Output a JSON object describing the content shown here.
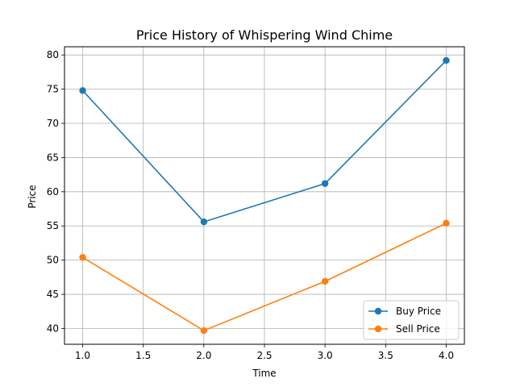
{
  "chart_data": {
    "type": "line",
    "title": "Price History of Whispering Wind Chime",
    "xlabel": "Time",
    "ylabel": "Price",
    "xlim": [
      0.85,
      4.15
    ],
    "ylim": [
      37.7,
      81.2
    ],
    "xticks": [
      1.0,
      1.5,
      2.0,
      2.5,
      3.0,
      3.5,
      4.0
    ],
    "xtick_labels": [
      "1.0",
      "1.5",
      "2.0",
      "2.5",
      "3.0",
      "3.5",
      "4.0"
    ],
    "yticks": [
      40,
      45,
      50,
      55,
      60,
      65,
      70,
      75,
      80
    ],
    "ytick_labels": [
      "40",
      "45",
      "50",
      "55",
      "60",
      "65",
      "70",
      "75",
      "80"
    ],
    "grid": true,
    "legend_position": "lower-right",
    "x": [
      1.0,
      2.0,
      3.0,
      4.0
    ],
    "series": [
      {
        "name": "Buy Price",
        "color": "#1f77b4",
        "values": [
          74.8,
          55.6,
          61.2,
          79.2
        ]
      },
      {
        "name": "Sell Price",
        "color": "#ff7f0e",
        "values": [
          50.4,
          39.7,
          46.9,
          55.4
        ]
      }
    ]
  }
}
